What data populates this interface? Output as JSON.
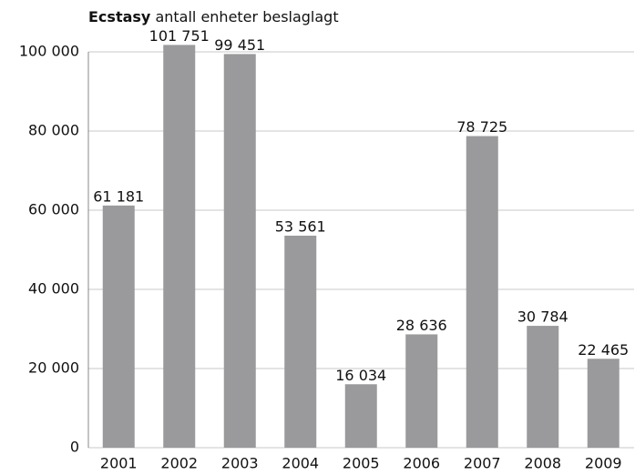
{
  "chart_data": {
    "type": "bar",
    "title": [
      "Ecstasy",
      "antall enheter beslaglagt"
    ],
    "categories": [
      "2001",
      "2002",
      "2003",
      "2004",
      "2005",
      "2006",
      "2007",
      "2008",
      "2009"
    ],
    "values": [
      61181,
      101751,
      99451,
      53561,
      16034,
      28636,
      78725,
      30784,
      22465
    ],
    "value_labels": [
      "61 181",
      "101 751",
      "99 451",
      "53 561",
      "16 034",
      "28 636",
      "78 725",
      "30 784",
      "22 465"
    ],
    "color": "#9a9a9c",
    "ylim": [
      0,
      100000
    ],
    "yticks": [
      0,
      {
        "value": 20000,
        "label": "20 000"
      },
      {
        "value": 40000,
        "label": "40 000"
      },
      {
        "value": 60000,
        "label": "60 000"
      },
      {
        "value": 80000,
        "label": "80 000"
      },
      {
        "value": 100000,
        "label": "100 000"
      }
    ],
    "grid": true
  }
}
